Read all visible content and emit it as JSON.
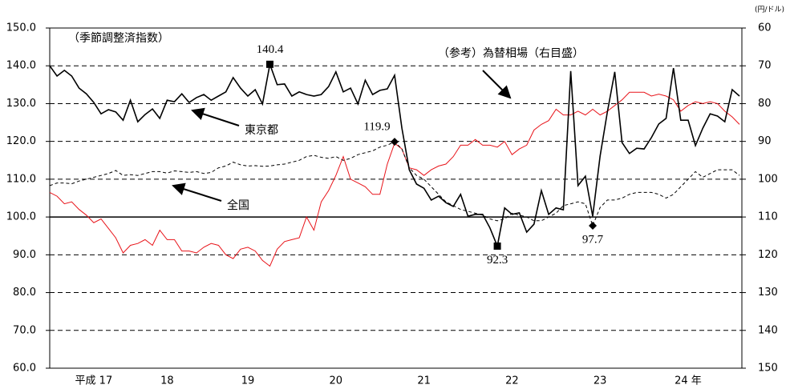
{
  "chart_data": {
    "type": "line",
    "categories": [
      null,
      null,
      null,
      null,
      null,
      null,
      "平成 17",
      null,
      null,
      null,
      null,
      null,
      null,
      null,
      null,
      null,
      "18",
      null,
      null,
      null,
      null,
      null,
      null,
      null,
      null,
      null,
      null,
      "19",
      null,
      null,
      null,
      null,
      null,
      null,
      null,
      null,
      null,
      null,
      null,
      "20",
      null,
      null,
      null,
      null,
      null,
      null,
      null,
      null,
      null,
      null,
      null,
      "21",
      null,
      null,
      null,
      null,
      null,
      null,
      null,
      null,
      null,
      null,
      null,
      "22",
      null,
      null,
      null,
      null,
      null,
      null,
      null,
      null,
      null,
      null,
      null,
      "23",
      null,
      null,
      null,
      null,
      null,
      null,
      null,
      null,
      null,
      null,
      null,
      "24 年",
      null,
      null,
      null,
      null,
      null,
      null,
      null
    ],
    "series": [
      {
        "name": "東京都",
        "color": "#000000",
        "dash": false,
        "extremes_marker": "square",
        "values": [
          140.0,
          137.3,
          138.8,
          137.3,
          134.1,
          132.6,
          130.3,
          127.3,
          128.4,
          127.8,
          125.6,
          130.9,
          125.2,
          127.1,
          128.6,
          126.1,
          130.9,
          130.5,
          132.6,
          130.3,
          131.6,
          132.4,
          130.9,
          132.0,
          133.1,
          136.9,
          134.1,
          132.0,
          133.7,
          129.9,
          140.4,
          135.0,
          135.2,
          132.0,
          133.1,
          132.4,
          132.0,
          132.4,
          134.5,
          138.4,
          133.1,
          134.1,
          129.9,
          136.2,
          132.4,
          133.5,
          133.9,
          137.5,
          123.5,
          112.5,
          108.7,
          107.6,
          104.5,
          105.5,
          103.8,
          102.8,
          106.0,
          100.2,
          100.7,
          100.7,
          97.1,
          92.3,
          102.4,
          100.7,
          101.1,
          96.0,
          98.1,
          107.0,
          100.7,
          102.4,
          101.9,
          138.6,
          108.3,
          110.8,
          100.2,
          116.1,
          127.8,
          138.4,
          119.7,
          116.8,
          118.2,
          118.0,
          121.0,
          124.6,
          126.1,
          139.4,
          125.6,
          125.6,
          118.9,
          123.5,
          127.3,
          126.7,
          125.2,
          133.7,
          132.0
        ]
      },
      {
        "name": "全国",
        "color": "#000000",
        "dash": true,
        "extremes_marker": "diamond",
        "values": [
          108.3,
          109,
          109,
          108.8,
          109.5,
          110,
          110.5,
          111,
          111.5,
          112.3,
          111,
          111.2,
          111,
          111.5,
          112,
          112,
          111.6,
          112.2,
          112,
          111.8,
          112,
          111.5,
          111.8,
          113,
          113.5,
          114.5,
          113.8,
          113.5,
          113.6,
          113.4,
          113.5,
          113.8,
          114,
          114.5,
          115,
          116,
          116.3,
          115.8,
          115.5,
          116,
          115,
          115.5,
          116.5,
          117,
          117.5,
          118.5,
          119,
          119.9,
          118,
          113,
          111,
          110,
          108,
          106,
          104,
          103,
          102,
          101.5,
          101,
          100.5,
          99.5,
          99,
          99.5,
          101,
          100.5,
          100,
          99,
          99,
          100,
          101,
          103,
          103.5,
          104,
          103.5,
          97.7,
          102.5,
          104.5,
          104.5,
          105,
          106,
          106.5,
          106.5,
          106.5,
          106,
          105,
          106,
          108,
          110,
          112,
          110.5,
          111.5,
          112.5,
          112.5,
          112.5,
          111
        ]
      },
      {
        "name": "（参考）為替相場（右目盛）",
        "color": "#e8141a",
        "dash": false,
        "axis": "y2",
        "values": [
          103.5,
          104.5,
          106.5,
          106,
          108,
          109.5,
          111.5,
          110.5,
          113,
          115.5,
          119.5,
          117.5,
          117,
          116,
          117.5,
          113.5,
          116,
          116,
          119,
          119,
          119.5,
          118,
          117,
          117.5,
          120,
          121,
          118.5,
          118,
          119,
          121.5,
          123,
          118.5,
          116.5,
          116,
          115.5,
          110,
          113.5,
          106,
          103,
          99,
          94,
          100,
          101,
          102,
          104,
          104,
          96,
          90.5,
          92,
          97,
          97.5,
          99,
          97.5,
          96.5,
          96,
          94,
          91,
          91,
          89.5,
          91,
          91,
          91.5,
          90,
          93.5,
          92,
          91,
          87,
          85.5,
          84.5,
          81.5,
          83,
          83,
          82,
          83,
          81.5,
          83,
          82,
          80.5,
          79,
          77,
          77,
          77,
          78,
          77.5,
          78,
          79,
          82,
          80.5,
          79.5,
          80,
          79.5,
          80,
          82,
          83.5,
          85.5
        ]
      }
    ],
    "ylim": [
      60,
      150
    ],
    "yticks": [
      {
        "value": 60,
        "label": "60.0"
      },
      {
        "value": 70,
        "label": "70.0"
      },
      {
        "value": 80,
        "label": "80.0"
      },
      {
        "value": 90,
        "label": "90.0"
      },
      {
        "value": 100,
        "label": "100.0"
      },
      {
        "value": 110,
        "label": "110.0"
      },
      {
        "value": 120,
        "label": "120.0"
      },
      {
        "value": 130,
        "label": "130.0"
      },
      {
        "value": 140,
        "label": "140.0"
      },
      {
        "value": 150,
        "label": "150.0"
      }
    ],
    "y2lim": [
      60,
      150
    ],
    "y2_inverted": true,
    "y2ticks": [
      60,
      70,
      80,
      90,
      100,
      110,
      120,
      130,
      140,
      150
    ],
    "y2unit": "(円/ドル)",
    "grid": true,
    "grid_style": "dashed",
    "hline": 100,
    "annotations": [
      "（季節調整済指数）",
      "（参考）為替相場（右目盛）",
      "東京都",
      "全国"
    ]
  }
}
